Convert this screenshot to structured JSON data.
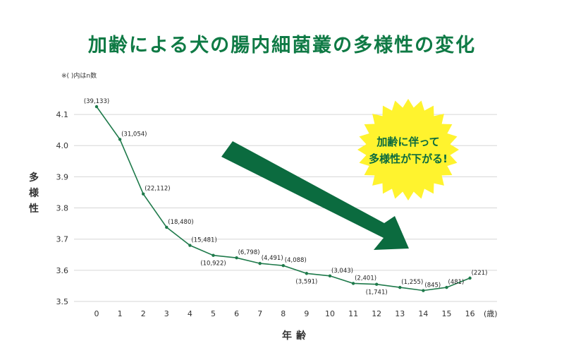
{
  "colors": {
    "title": "#0f7a45",
    "line": "#1f7a4b",
    "arrow": "#0b6b3f",
    "burst": "#fff32e",
    "callout_text": "#0b6b3f",
    "grid": "#d6d6d6",
    "axis_text": "#333333"
  },
  "chart_data": {
    "type": "line",
    "title": "加齢による犬の腸内細菌叢の多様性の変化",
    "note": "※( )内はn数",
    "xlabel": "年齢",
    "ylabel": "多様性",
    "x_unit": "(歳)",
    "x": [
      0,
      1,
      2,
      3,
      4,
      5,
      6,
      7,
      8,
      9,
      10,
      11,
      12,
      13,
      14,
      15,
      16
    ],
    "x_tick_labels": [
      "0",
      "1",
      "2",
      "3",
      "4",
      "5",
      "6",
      "7",
      "8",
      "9",
      "10",
      "11",
      "12",
      "13",
      "14",
      "15",
      "16"
    ],
    "ylim": [
      3.5,
      4.15
    ],
    "y_ticks": [
      3.5,
      3.6,
      3.7,
      3.8,
      3.9,
      4.0,
      4.1
    ],
    "y_tick_labels": [
      "3.5",
      "3.6",
      "3.7",
      "3.8",
      "3.9",
      "4.0",
      "4.1"
    ],
    "grid": true,
    "series": [
      {
        "values": [
          4.125,
          4.02,
          3.845,
          3.738,
          3.68,
          3.648,
          3.64,
          3.622,
          3.615,
          3.59,
          3.582,
          3.558,
          3.555,
          3.545,
          3.535,
          3.545,
          3.575
        ],
        "point_labels": [
          "(39,133)",
          "(31,054)",
          "(22,112)",
          "(18,480)",
          "(15,481)",
          "(10,922)",
          "(6,798)",
          "(4,491)",
          "(4,088)",
          "(3,591)",
          "(3,043)",
          "(2,401)",
          "(1,741)",
          "(1,255)",
          "(845)",
          "(481)",
          "(221)"
        ]
      }
    ],
    "callout": {
      "lines": [
        "加齢に伴って",
        "多様性が下がる!"
      ]
    },
    "trend_arrow": "down-right"
  }
}
